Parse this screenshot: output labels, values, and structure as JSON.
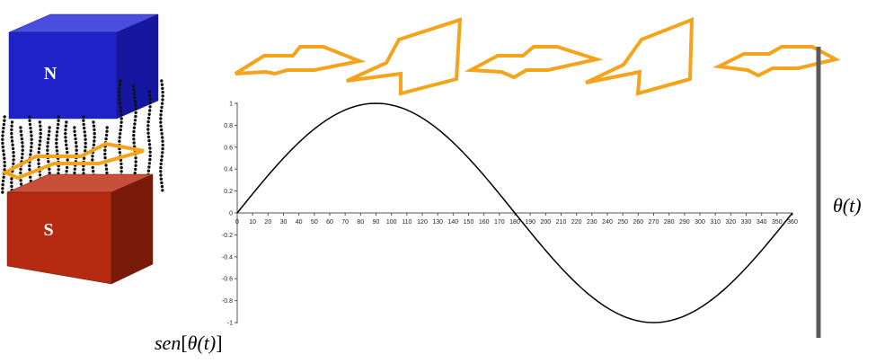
{
  "magnet": {
    "north_label": "N",
    "south_label": "S",
    "north_color": "#1f22c8",
    "south_color": "#b52a10"
  },
  "loop_color": "#f5a31a",
  "rail_color": "#5a5a5a",
  "labels": {
    "theta": "θ(t)",
    "sen_prefix": "sen",
    "sen_theta": "θ(t)"
  },
  "chart_data": {
    "type": "line",
    "function": "sin",
    "x": [
      0,
      10,
      20,
      30,
      40,
      50,
      60,
      70,
      80,
      90,
      100,
      110,
      120,
      130,
      140,
      150,
      160,
      170,
      180,
      190,
      200,
      210,
      220,
      230,
      240,
      250,
      260,
      270,
      280,
      290,
      300,
      310,
      320,
      330,
      340,
      350,
      360
    ],
    "y": [
      0,
      0.174,
      0.342,
      0.5,
      0.643,
      0.766,
      0.866,
      0.94,
      0.985,
      1,
      0.985,
      0.94,
      0.866,
      0.766,
      0.643,
      0.5,
      0.342,
      0.174,
      0,
      -0.174,
      -0.342,
      -0.5,
      -0.643,
      -0.766,
      -0.866,
      -0.94,
      -0.985,
      -1,
      -0.985,
      -0.94,
      -0.866,
      -0.766,
      -0.643,
      -0.5,
      -0.342,
      -0.174,
      0
    ],
    "xticks": [
      "0",
      "10",
      "20",
      "30",
      "40",
      "50",
      "60",
      "70",
      "80",
      "90",
      "100",
      "110",
      "120",
      "130",
      "140",
      "150",
      "160",
      "170",
      "180",
      "190",
      "200",
      "210",
      "220",
      "230",
      "240",
      "250",
      "260",
      "270",
      "280",
      "290",
      "300",
      "310",
      "320",
      "330",
      "340",
      "350",
      "360"
    ],
    "yticks": [
      "1",
      "0.8",
      "0.6",
      "0.4",
      "0.2",
      "0",
      "-0.2",
      "-0.4",
      "-0.6",
      "-0.8",
      "-1"
    ],
    "xlim": [
      0,
      360
    ],
    "ylim": [
      -1,
      1
    ],
    "line_color": "#000000"
  }
}
